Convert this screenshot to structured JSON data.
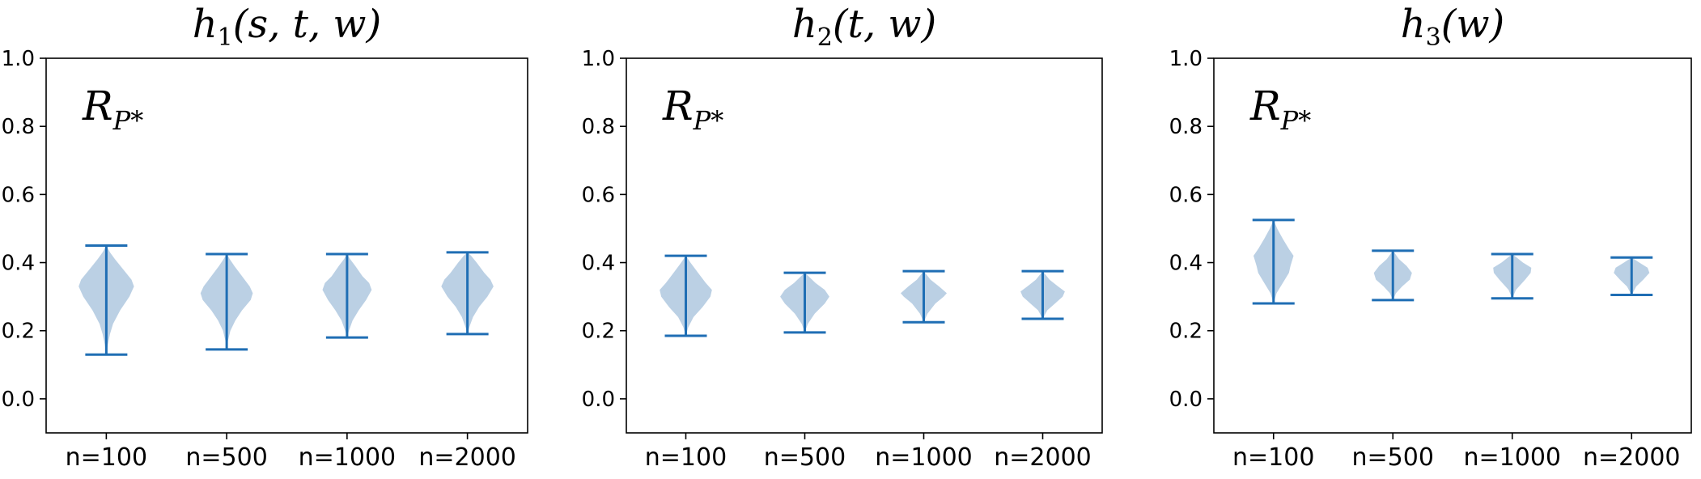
{
  "colors": {
    "violin_fill": "#b7cde3",
    "violin_line": "#1f6eb4",
    "axes": "#000000",
    "background": "#ffffff"
  },
  "chart_data": [
    {
      "type": "violin",
      "title": {
        "base": "h",
        "sub": "1",
        "args": "(s, t, w)"
      },
      "annotation": {
        "base": "R",
        "sub": "P*"
      },
      "categories": [
        "n=100",
        "n=500",
        "n=1000",
        "n=2000"
      ],
      "ylim": [
        -0.1,
        1.0
      ],
      "yticks": [
        "0.0",
        "0.2",
        "0.4",
        "0.6",
        "0.8",
        "1.0"
      ],
      "grid": false,
      "violins": [
        {
          "min": 0.13,
          "max": 0.45,
          "profile": [
            [
              0.13,
              0.0
            ],
            [
              0.16,
              0.05
            ],
            [
              0.19,
              0.12
            ],
            [
              0.22,
              0.22
            ],
            [
              0.26,
              0.45
            ],
            [
              0.3,
              0.75
            ],
            [
              0.33,
              0.9
            ],
            [
              0.35,
              0.82
            ],
            [
              0.38,
              0.55
            ],
            [
              0.41,
              0.28
            ],
            [
              0.43,
              0.12
            ],
            [
              0.45,
              0.0
            ]
          ]
        },
        {
          "min": 0.145,
          "max": 0.425,
          "profile": [
            [
              0.145,
              0.0
            ],
            [
              0.17,
              0.04
            ],
            [
              0.2,
              0.12
            ],
            [
              0.23,
              0.28
            ],
            [
              0.26,
              0.5
            ],
            [
              0.29,
              0.78
            ],
            [
              0.31,
              0.85
            ],
            [
              0.33,
              0.75
            ],
            [
              0.36,
              0.5
            ],
            [
              0.39,
              0.25
            ],
            [
              0.41,
              0.1
            ],
            [
              0.425,
              0.0
            ]
          ]
        },
        {
          "min": 0.18,
          "max": 0.425,
          "profile": [
            [
              0.18,
              0.0
            ],
            [
              0.2,
              0.06
            ],
            [
              0.23,
              0.18
            ],
            [
              0.26,
              0.38
            ],
            [
              0.29,
              0.62
            ],
            [
              0.32,
              0.8
            ],
            [
              0.34,
              0.72
            ],
            [
              0.36,
              0.5
            ],
            [
              0.39,
              0.27
            ],
            [
              0.41,
              0.1
            ],
            [
              0.425,
              0.0
            ]
          ]
        },
        {
          "min": 0.19,
          "max": 0.43,
          "profile": [
            [
              0.19,
              0.0
            ],
            [
              0.21,
              0.06
            ],
            [
              0.24,
              0.18
            ],
            [
              0.27,
              0.38
            ],
            [
              0.3,
              0.65
            ],
            [
              0.33,
              0.85
            ],
            [
              0.35,
              0.75
            ],
            [
              0.37,
              0.55
            ],
            [
              0.4,
              0.3
            ],
            [
              0.42,
              0.12
            ],
            [
              0.43,
              0.0
            ]
          ]
        }
      ]
    },
    {
      "type": "violin",
      "title": {
        "base": "h",
        "sub": "2",
        "args": "(t, w)"
      },
      "annotation": {
        "base": "R",
        "sub": "P*"
      },
      "categories": [
        "n=100",
        "n=500",
        "n=1000",
        "n=2000"
      ],
      "ylim": [
        -0.1,
        1.0
      ],
      "yticks": [
        "0.0",
        "0.2",
        "0.4",
        "0.6",
        "0.8",
        "1.0"
      ],
      "grid": false,
      "violins": [
        {
          "min": 0.185,
          "max": 0.42,
          "profile": [
            [
              0.185,
              0.0
            ],
            [
              0.21,
              0.08
            ],
            [
              0.24,
              0.25
            ],
            [
              0.27,
              0.55
            ],
            [
              0.3,
              0.8
            ],
            [
              0.32,
              0.85
            ],
            [
              0.34,
              0.65
            ],
            [
              0.37,
              0.4
            ],
            [
              0.4,
              0.15
            ],
            [
              0.42,
              0.0
            ]
          ]
        },
        {
          "min": 0.195,
          "max": 0.37,
          "profile": [
            [
              0.195,
              0.0
            ],
            [
              0.22,
              0.1
            ],
            [
              0.25,
              0.32
            ],
            [
              0.28,
              0.65
            ],
            [
              0.3,
              0.8
            ],
            [
              0.32,
              0.65
            ],
            [
              0.34,
              0.35
            ],
            [
              0.36,
              0.12
            ],
            [
              0.37,
              0.0
            ]
          ]
        },
        {
          "min": 0.225,
          "max": 0.375,
          "profile": [
            [
              0.225,
              0.0
            ],
            [
              0.25,
              0.12
            ],
            [
              0.28,
              0.38
            ],
            [
              0.3,
              0.65
            ],
            [
              0.31,
              0.75
            ],
            [
              0.33,
              0.5
            ],
            [
              0.35,
              0.22
            ],
            [
              0.375,
              0.0
            ]
          ]
        },
        {
          "min": 0.235,
          "max": 0.375,
          "profile": [
            [
              0.235,
              0.0
            ],
            [
              0.26,
              0.15
            ],
            [
              0.28,
              0.4
            ],
            [
              0.3,
              0.65
            ],
            [
              0.315,
              0.72
            ],
            [
              0.33,
              0.5
            ],
            [
              0.35,
              0.22
            ],
            [
              0.375,
              0.0
            ]
          ]
        }
      ]
    },
    {
      "type": "violin",
      "title": {
        "base": "h",
        "sub": "3",
        "args": "(w)"
      },
      "annotation": {
        "base": "R",
        "sub": "P*"
      },
      "categories": [
        "n=100",
        "n=500",
        "n=1000",
        "n=2000"
      ],
      "ylim": [
        -0.1,
        1.0
      ],
      "yticks": [
        "0.0",
        "0.2",
        "0.4",
        "0.6",
        "0.8",
        "1.0"
      ],
      "grid": false,
      "violins": [
        {
          "min": 0.28,
          "max": 0.525,
          "profile": [
            [
              0.28,
              0.0
            ],
            [
              0.31,
              0.1
            ],
            [
              0.34,
              0.3
            ],
            [
              0.37,
              0.5
            ],
            [
              0.39,
              0.55
            ],
            [
              0.42,
              0.65
            ],
            [
              0.44,
              0.5
            ],
            [
              0.47,
              0.3
            ],
            [
              0.5,
              0.12
            ],
            [
              0.525,
              0.0
            ]
          ]
        },
        {
          "min": 0.29,
          "max": 0.435,
          "profile": [
            [
              0.29,
              0.0
            ],
            [
              0.31,
              0.1
            ],
            [
              0.33,
              0.3
            ],
            [
              0.35,
              0.55
            ],
            [
              0.37,
              0.62
            ],
            [
              0.39,
              0.45
            ],
            [
              0.41,
              0.2
            ],
            [
              0.435,
              0.0
            ]
          ]
        },
        {
          "min": 0.295,
          "max": 0.425,
          "profile": [
            [
              0.295,
              0.0
            ],
            [
              0.32,
              0.12
            ],
            [
              0.35,
              0.42
            ],
            [
              0.37,
              0.6
            ],
            [
              0.385,
              0.62
            ],
            [
              0.4,
              0.35
            ],
            [
              0.425,
              0.0
            ]
          ]
        },
        {
          "min": 0.305,
          "max": 0.415,
          "profile": [
            [
              0.305,
              0.0
            ],
            [
              0.33,
              0.15
            ],
            [
              0.35,
              0.38
            ],
            [
              0.37,
              0.58
            ],
            [
              0.385,
              0.52
            ],
            [
              0.4,
              0.25
            ],
            [
              0.415,
              0.0
            ]
          ]
        }
      ]
    }
  ]
}
